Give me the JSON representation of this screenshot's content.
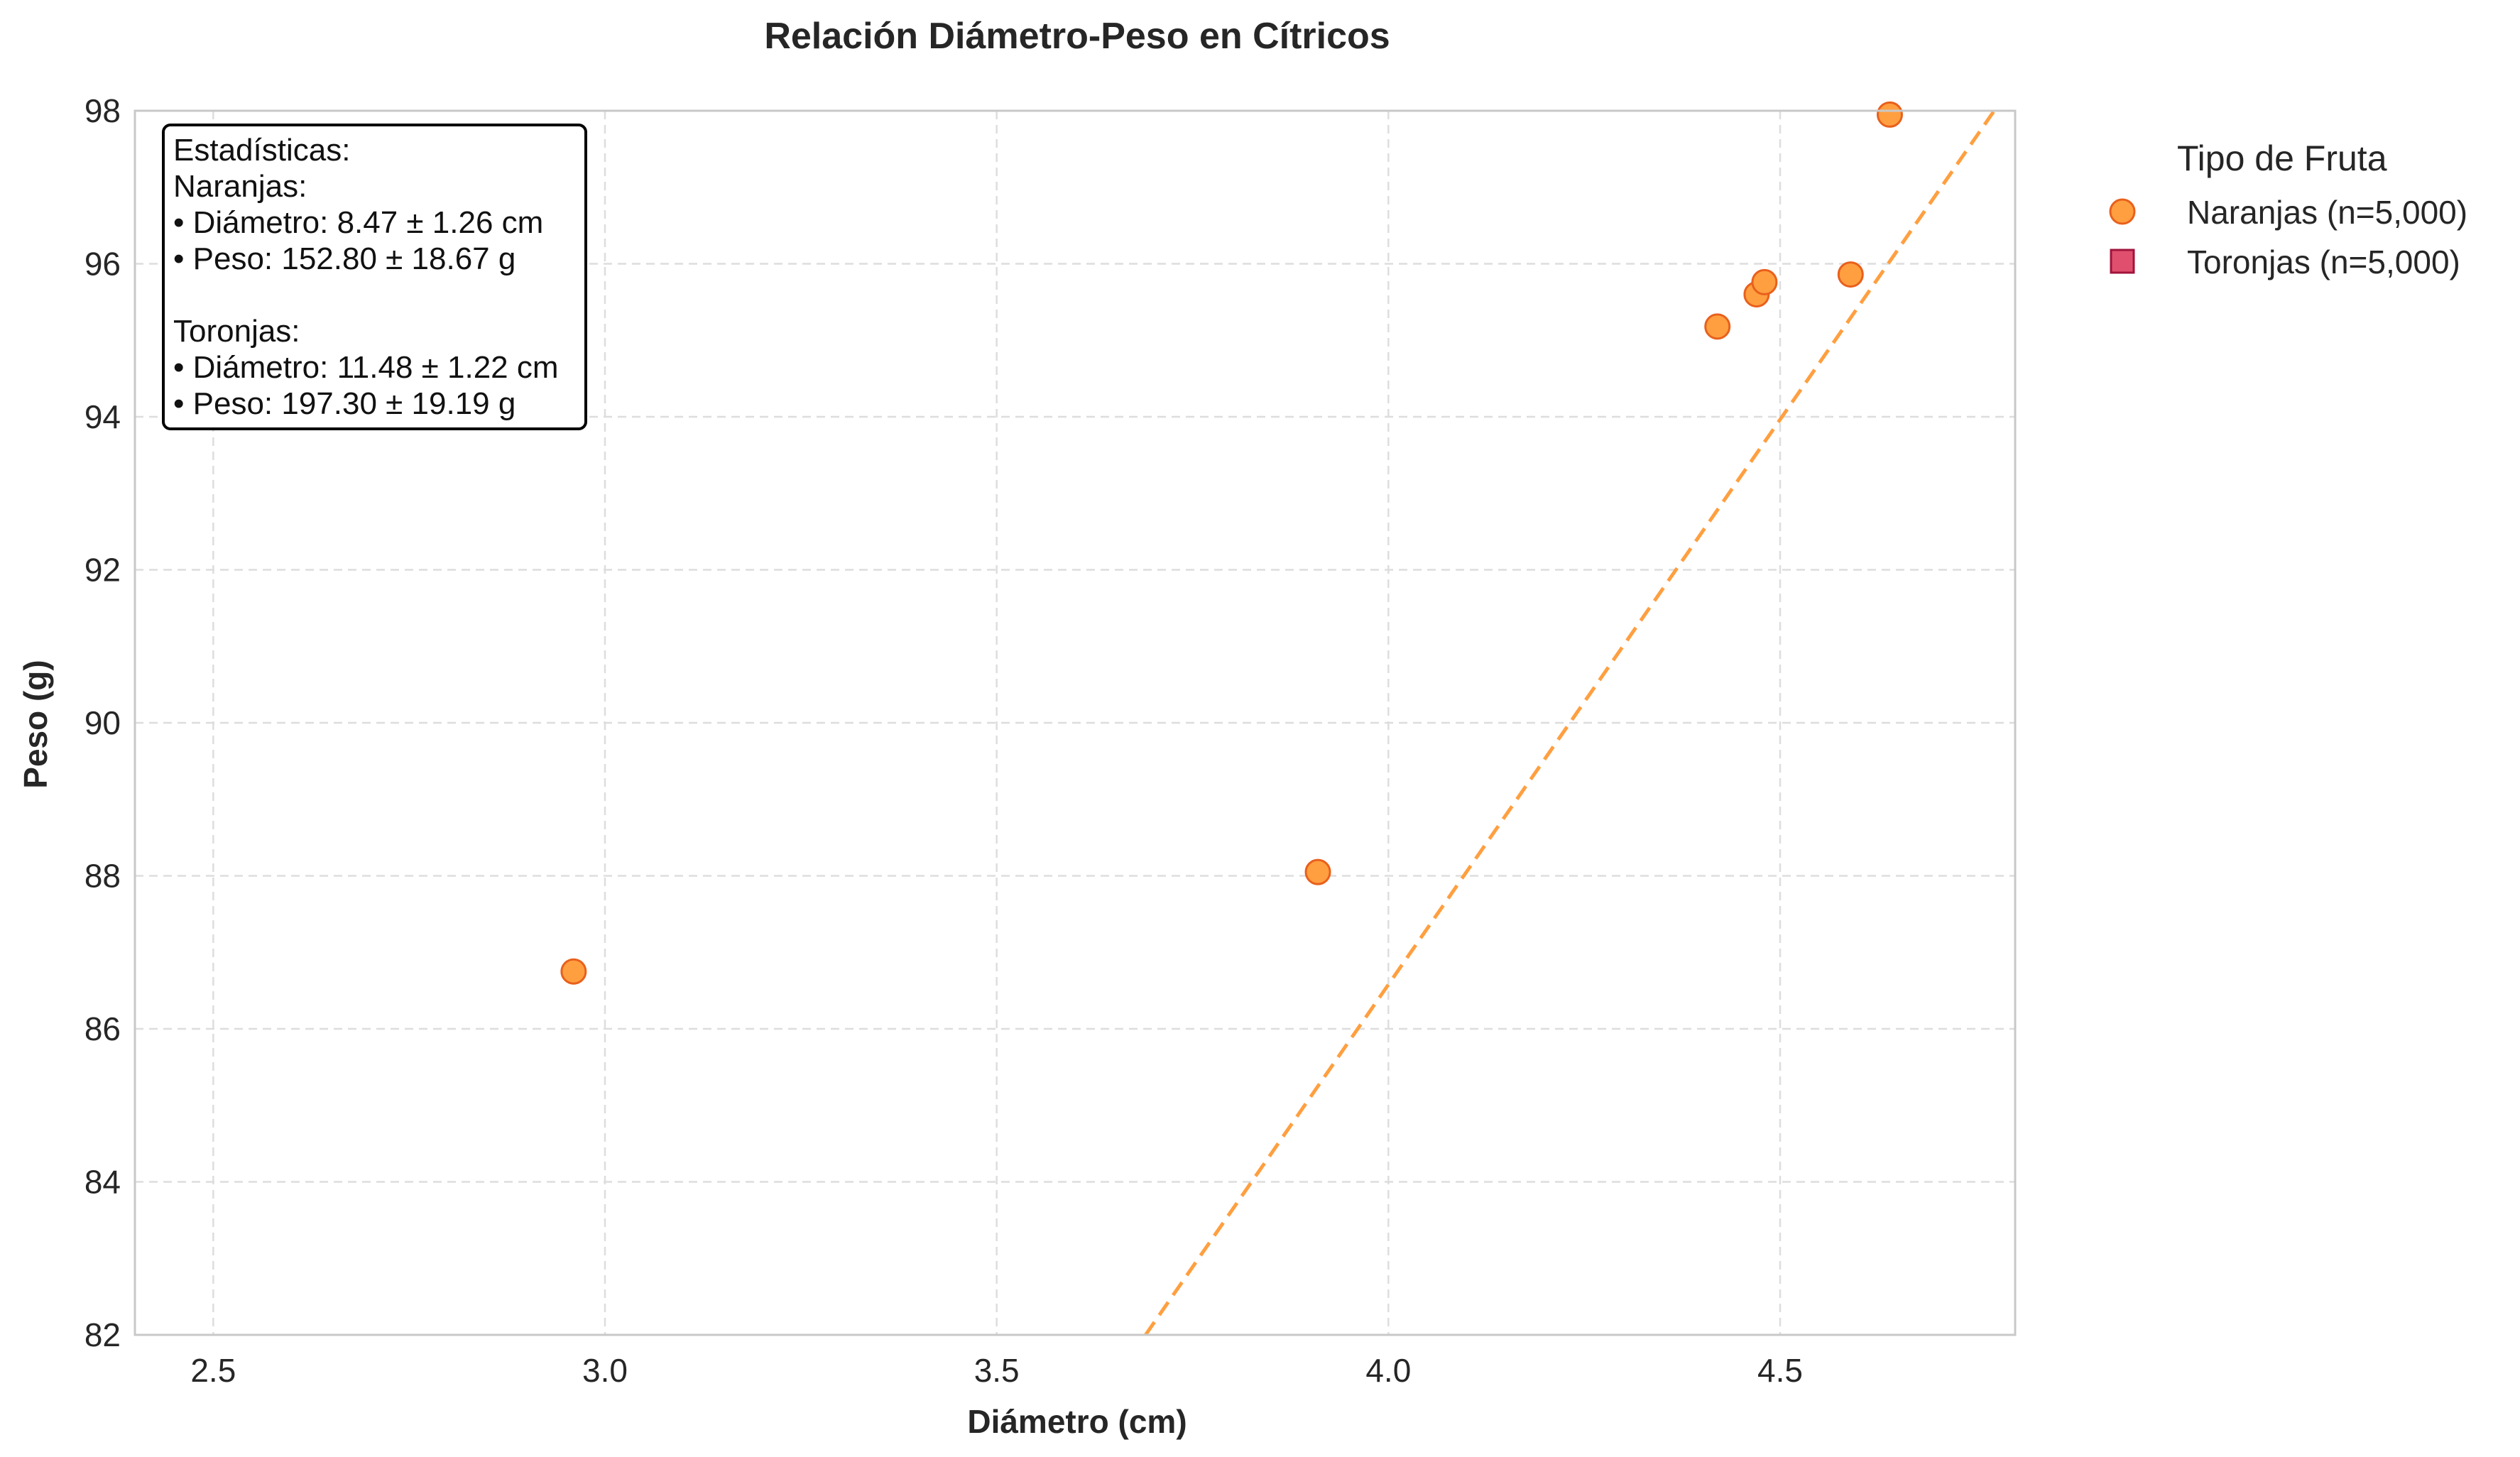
{
  "chart_data": {
    "type": "scatter",
    "title": "Relación Diámetro-Peso en Cítricos",
    "xlabel": "Diámetro (cm)",
    "ylabel": "Peso (g)",
    "xlim": [
      2.4,
      4.8
    ],
    "ylim": [
      82,
      98
    ],
    "xticks": [
      2.5,
      3.0,
      3.5,
      4.0,
      4.5
    ],
    "xtick_labels": [
      "2.5",
      "3.0",
      "3.5",
      "4.0",
      "4.5"
    ],
    "yticks": [
      82,
      84,
      86,
      88,
      90,
      92,
      94,
      96,
      98
    ],
    "ytick_labels": [
      "82",
      "84",
      "86",
      "88",
      "90",
      "92",
      "94",
      "96",
      "98"
    ],
    "grid": true,
    "grid_style": "dashed",
    "legend": {
      "title": "Tipo de Fruta",
      "placement": "outside-top-right",
      "entries": [
        {
          "label": "Naranjas (n=5,000)",
          "marker": "circle",
          "color": "#ff9f40",
          "edge": "#e8601c"
        },
        {
          "label": "Toronjas (n=5,000)",
          "marker": "square",
          "color": "#e0506e",
          "edge": "#a0143c"
        }
      ]
    },
    "series": [
      {
        "name": "Naranjas (n=5,000)",
        "marker": "circle",
        "color": "#ff9f40",
        "edge": "#e8601c",
        "points": [
          {
            "x": 2.96,
            "y": 86.75
          },
          {
            "x": 3.91,
            "y": 88.05
          },
          {
            "x": 4.42,
            "y": 95.18
          },
          {
            "x": 4.47,
            "y": 95.6
          },
          {
            "x": 4.48,
            "y": 95.76
          },
          {
            "x": 4.59,
            "y": 95.86
          },
          {
            "x": 4.64,
            "y": 97.95
          }
        ],
        "trendline": {
          "x0": 3.69,
          "y0": 82.0,
          "x1": 4.78,
          "y1": 98.1,
          "color": "#ff9f40",
          "style": "dashed"
        }
      },
      {
        "name": "Toronjas (n=5,000)",
        "marker": "square",
        "color": "#e0506e",
        "edge": "#a0143c",
        "points": []
      }
    ],
    "annotation": {
      "placement": "top-left",
      "lines": [
        "Estadísticas:",
        "Naranjas:",
        "• Diámetro: 8.47 ± 1.26 cm",
        "• Peso: 152.80 ± 18.67 g",
        "",
        "Toronjas:",
        "• Diámetro: 11.48 ± 1.22 cm",
        "• Peso: 197.30 ± 19.19 g"
      ]
    }
  }
}
